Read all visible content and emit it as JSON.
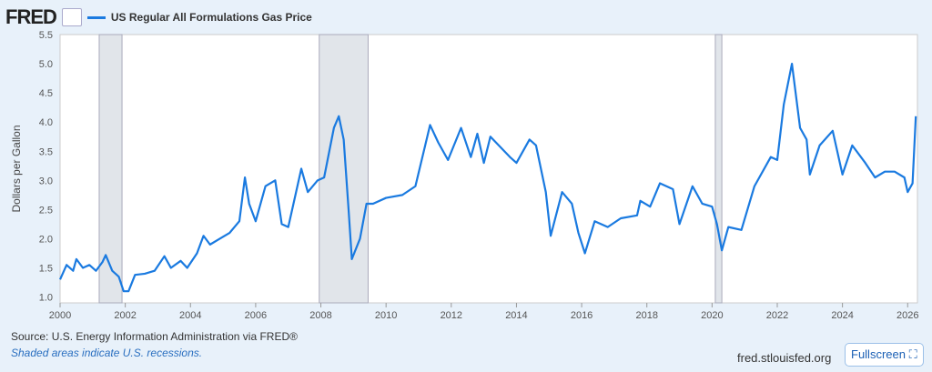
{
  "header": {
    "logo": "FRED",
    "legend": "US Regular All Formulations Gas Price"
  },
  "footer": {
    "source": "Source: U.S. Energy Information Administration via FRED®",
    "note": "Shaded areas indicate U.S. recessions.",
    "site": "fred.stlouisfed.org",
    "fullscreen": "Fullscreen ⛶"
  },
  "colors": {
    "line": "#1a7ae0",
    "recession": "#e1e5ea"
  },
  "chart_data": {
    "type": "line",
    "title": "US Regular All Formulations Gas Price",
    "xlabel": "",
    "ylabel": "Dollars per Gallon",
    "xlim": [
      2000,
      2026.3
    ],
    "ylim": [
      0.9,
      5.5
    ],
    "xticks": [
      2000,
      2002,
      2004,
      2006,
      2008,
      2010,
      2012,
      2014,
      2016,
      2018,
      2020,
      2022,
      2024,
      2026
    ],
    "yticks": [
      "1.0",
      "1.5",
      "2.0",
      "2.5",
      "3.0",
      "3.5",
      "4.0",
      "4.5",
      "5.0",
      "5.5"
    ],
    "recessions": [
      [
        2001.2,
        2001.9
      ],
      [
        2007.95,
        2009.45
      ],
      [
        2020.1,
        2020.3
      ]
    ],
    "series": [
      {
        "name": "US Regular All Formulations Gas Price",
        "x": [
          2000.0,
          2000.2,
          2000.4,
          2000.5,
          2000.7,
          2000.9,
          2001.1,
          2001.3,
          2001.4,
          2001.6,
          2001.8,
          2001.95,
          2002.1,
          2002.3,
          2002.6,
          2002.9,
          2003.2,
          2003.4,
          2003.7,
          2003.9,
          2004.2,
          2004.4,
          2004.6,
          2004.9,
          2005.2,
          2005.5,
          2005.67,
          2005.8,
          2006.0,
          2006.3,
          2006.6,
          2006.8,
          2007.0,
          2007.4,
          2007.6,
          2007.9,
          2008.1,
          2008.4,
          2008.55,
          2008.7,
          2008.85,
          2008.95,
          2009.2,
          2009.4,
          2009.6,
          2010.0,
          2010.5,
          2010.9,
          2011.2,
          2011.35,
          2011.6,
          2011.9,
          2012.3,
          2012.6,
          2012.8,
          2013.0,
          2013.2,
          2013.8,
          2014.0,
          2014.4,
          2014.6,
          2014.9,
          2015.05,
          2015.4,
          2015.7,
          2015.9,
          2016.1,
          2016.4,
          2016.8,
          2017.2,
          2017.7,
          2017.8,
          2018.1,
          2018.4,
          2018.8,
          2019.0,
          2019.4,
          2019.7,
          2020.0,
          2020.15,
          2020.3,
          2020.5,
          2020.9,
          2021.3,
          2021.8,
          2022.0,
          2022.2,
          2022.45,
          2022.7,
          2022.9,
          2023.0,
          2023.3,
          2023.7,
          2024.0,
          2024.3,
          2024.7,
          2025.0,
          2025.3,
          2025.6,
          2025.9,
          2026.0,
          2026.15,
          2026.25
        ],
        "values": [
          1.3,
          1.55,
          1.45,
          1.65,
          1.5,
          1.55,
          1.45,
          1.6,
          1.72,
          1.45,
          1.35,
          1.1,
          1.1,
          1.38,
          1.4,
          1.45,
          1.7,
          1.5,
          1.62,
          1.5,
          1.75,
          2.05,
          1.9,
          2.0,
          2.1,
          2.3,
          3.05,
          2.6,
          2.3,
          2.9,
          3.0,
          2.25,
          2.2,
          3.2,
          2.8,
          3.0,
          3.05,
          3.9,
          4.1,
          3.7,
          2.5,
          1.65,
          2.0,
          2.6,
          2.6,
          2.7,
          2.75,
          2.9,
          3.6,
          3.95,
          3.65,
          3.35,
          3.9,
          3.4,
          3.8,
          3.3,
          3.75,
          3.4,
          3.3,
          3.7,
          3.6,
          2.8,
          2.05,
          2.8,
          2.6,
          2.1,
          1.75,
          2.3,
          2.2,
          2.35,
          2.4,
          2.65,
          2.55,
          2.95,
          2.85,
          2.25,
          2.9,
          2.6,
          2.55,
          2.25,
          1.8,
          2.2,
          2.15,
          2.9,
          3.4,
          3.35,
          4.3,
          5.0,
          3.9,
          3.7,
          3.1,
          3.6,
          3.85,
          3.1,
          3.6,
          3.3,
          3.05,
          3.15,
          3.15,
          3.05,
          2.8,
          2.95,
          4.1
        ]
      }
    ]
  }
}
